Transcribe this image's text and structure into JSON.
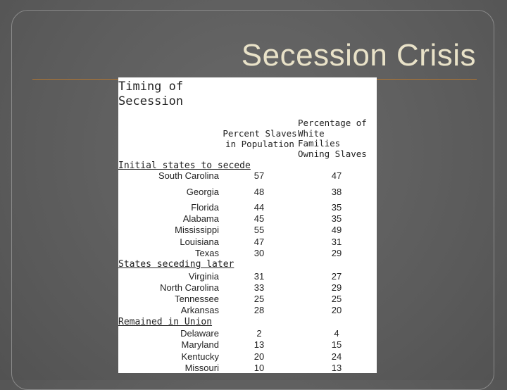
{
  "slide": {
    "title": "Secession Crisis"
  },
  "table": {
    "heading": "Timing of Secession",
    "col1_header": "Percent Slaves in Population",
    "col2_header": "Percentage of White Families Owning Slaves",
    "groups": [
      {
        "label": "Initial states to secede",
        "rows": [
          {
            "state": "South Carolina",
            "slaves": "57",
            "families": "47"
          },
          {
            "state": "Georgia",
            "slaves": "48",
            "families": "38"
          },
          {
            "state": "Florida",
            "slaves": "44",
            "families": "35"
          },
          {
            "state": "Alabama",
            "slaves": "45",
            "families": "35"
          },
          {
            "state": "Mississippi",
            "slaves": "55",
            "families": "49"
          },
          {
            "state": "Louisiana",
            "slaves": "47",
            "families": "31"
          },
          {
            "state": "Texas",
            "slaves": "30",
            "families": "29"
          }
        ]
      },
      {
        "label": "States seceding later",
        "rows": [
          {
            "state": "Virginia",
            "slaves": "31",
            "families": "27"
          },
          {
            "state": "North Carolina",
            "slaves": "33",
            "families": "29"
          },
          {
            "state": "Tennessee",
            "slaves": "25",
            "families": "25"
          },
          {
            "state": "Arkansas",
            "slaves": "28",
            "families": "20"
          }
        ]
      },
      {
        "label": "Remained in Union",
        "rows": [
          {
            "state": "Delaware",
            "slaves": "2",
            "families": "4"
          },
          {
            "state": "Maryland",
            "slaves": "13",
            "families": "15"
          },
          {
            "state": "Kentucky",
            "slaves": "20",
            "families": "24"
          },
          {
            "state": "Missouri",
            "slaves": "10",
            "families": "13"
          }
        ]
      }
    ]
  }
}
